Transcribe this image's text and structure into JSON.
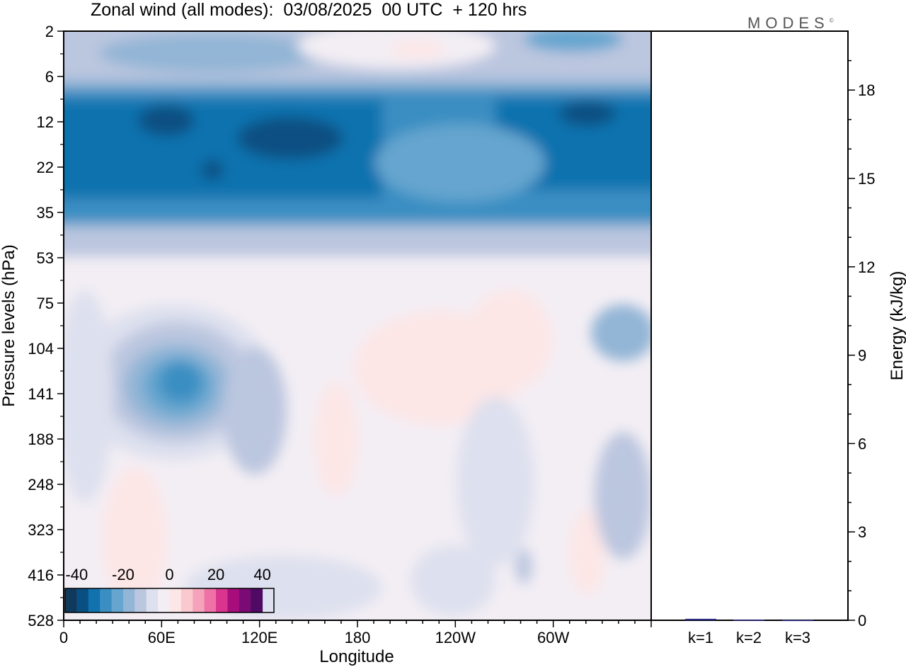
{
  "title": "Zonal wind (all modes):  03/08/2025  00 UTC  + 120 hrs",
  "logo": "MODES",
  "logo_mark": "©",
  "chart_data": [
    {
      "type": "heatmap",
      "title": "Zonal wind (all modes):  03/08/2025  00 UTC  + 120 hrs",
      "xlabel": "Longitude",
      "ylabel": "Pressure levels (hPa)",
      "x_ticks": [
        "0",
        "60E",
        "120E",
        "180",
        "120W",
        "60W"
      ],
      "x_tick_degrees": [
        0,
        60,
        120,
        180,
        240,
        300
      ],
      "xlim": [
        0,
        360
      ],
      "y_ticks": [
        "2",
        "6",
        "12",
        "22",
        "35",
        "53",
        "75",
        "104",
        "141",
        "188",
        "248",
        "323",
        "416",
        "528"
      ],
      "y_scale": "level index (top to bottom)",
      "colorbar": {
        "labels": [
          "-40",
          "-20",
          "0",
          "20",
          "40"
        ],
        "label_values": [
          -40,
          -20,
          0,
          20,
          40
        ],
        "range": [
          -45,
          45
        ],
        "step": 5,
        "colors": [
          "#0f3a5c",
          "#0a4f82",
          "#1172ae",
          "#3a8ec2",
          "#65a5cf",
          "#93b5d6",
          "#bbc6df",
          "#dde0ee",
          "#f3eef4",
          "#fde6e6",
          "#f9c9cf",
          "#f5a3ba",
          "#ee72a6",
          "#d9348e",
          "#a70e7c",
          "#7b0b74",
          "#4f0a63"
        ],
        "placement": "bottom-left"
      },
      "field_summary": [
        {
          "levels": "2-6 hPa",
          "wind": -15
        },
        {
          "levels": "6-35 hPa",
          "wind": -35
        },
        {
          "levels": "35-53 hPa",
          "wind": -20
        },
        {
          "levels": "104-188 hPa, 60E-80E",
          "wind": -35
        },
        {
          "levels": "104-323 hPa, 150E-120W",
          "wind": 5
        },
        {
          "levels": "323-528 hPa",
          "wind": -5
        }
      ]
    },
    {
      "type": "bar",
      "xlabel": "",
      "ylabel": "Energy (kJ/kg)",
      "categories": [
        "k=1",
        "k=2",
        "k=3"
      ],
      "values": [
        0.05,
        0.02,
        0.01
      ],
      "ylim": [
        0,
        20
      ],
      "y_ticks": [
        "0",
        "3",
        "6",
        "9",
        "12",
        "15",
        "18"
      ],
      "y_tick_values": [
        0,
        3,
        6,
        9,
        12,
        15,
        18
      ],
      "bar_color": "#2b2b8a"
    }
  ]
}
